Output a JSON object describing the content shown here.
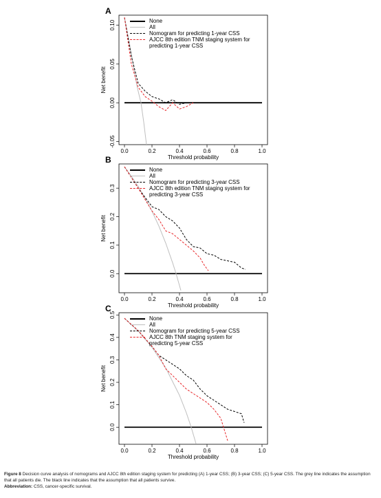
{
  "chart_data": [
    {
      "type": "line",
      "panel_label": "A",
      "xlabel": "Threshold probability",
      "ylabel": "Net benefit",
      "xlim": [
        -0.04,
        1.04
      ],
      "ylim": [
        -0.054,
        0.113
      ],
      "xticks": [
        {
          "value": 0,
          "label": "0.0"
        },
        0.2,
        0.4,
        0.6,
        0.8,
        {
          "value": 1,
          "label": "1.0"
        }
      ],
      "yticks": [
        -0.05,
        {
          "value": 0,
          "label": "0.00"
        },
        0.05,
        {
          "value": 0.1,
          "label": "0.10"
        }
      ],
      "legend": "topright",
      "series": [
        {
          "name": "None",
          "color": "#000000",
          "dash": "solid",
          "x": [
            0,
            1
          ],
          "values": [
            0,
            0
          ]
        },
        {
          "name": "All",
          "color": "#bebebe",
          "dash": "solid",
          "x": [
            0,
            0.03,
            0.06,
            0.09,
            0.12,
            0.14,
            0.16
          ],
          "values": [
            0.11,
            0.082,
            0.053,
            0.022,
            0.0,
            -0.025,
            -0.054
          ]
        },
        {
          "name": "Nomogram for predicting 1-year CSS",
          "color": "#000000",
          "dash": "dashed",
          "x": [
            0,
            0.05,
            0.1,
            0.15,
            0.2,
            0.25,
            0.3,
            0.35,
            0.4,
            0.45,
            0.5,
            0.52
          ],
          "values": [
            0.11,
            0.06,
            0.025,
            0.015,
            0.008,
            0.005,
            0.0,
            0.004,
            -0.002,
            0.0,
            0.0,
            0.0
          ]
        },
        {
          "name": "AJCC 8th edition TNM staging system for predicting 1-year CSS",
          "color": "#e8272a",
          "dash": "dashed",
          "x": [
            0,
            0.05,
            0.1,
            0.15,
            0.2,
            0.25,
            0.3,
            0.35,
            0.4,
            0.45,
            0.5
          ],
          "values": [
            0.11,
            0.05,
            0.02,
            0.008,
            0.002,
            -0.005,
            -0.01,
            0.0,
            -0.008,
            -0.005,
            0.0
          ]
        }
      ]
    },
    {
      "type": "line",
      "panel_label": "B",
      "xlabel": "Threshold probability",
      "ylabel": "Net benefit",
      "xlim": [
        -0.04,
        1.04
      ],
      "ylim": [
        -0.067,
        0.385
      ],
      "xticks": [
        {
          "value": 0,
          "label": "0.0"
        },
        0.2,
        0.4,
        0.6,
        0.8,
        {
          "value": 1,
          "label": "1.0"
        }
      ],
      "yticks": [
        {
          "value": 0,
          "label": "0.0"
        },
        0.1,
        0.2,
        0.3
      ],
      "legend": "topright",
      "series": [
        {
          "name": "None",
          "color": "#000000",
          "dash": "solid",
          "x": [
            0,
            1
          ],
          "values": [
            0,
            0
          ]
        },
        {
          "name": "All",
          "color": "#bebebe",
          "dash": "solid",
          "x": [
            0,
            0.05,
            0.1,
            0.15,
            0.2,
            0.25,
            0.3,
            0.35,
            0.375,
            0.4,
            0.41
          ],
          "values": [
            0.375,
            0.342,
            0.306,
            0.265,
            0.219,
            0.167,
            0.107,
            0.038,
            0.0,
            -0.042,
            -0.059
          ]
        },
        {
          "name": "Nomogram for predicting 3-year CSS",
          "color": "#000000",
          "dash": "dashed",
          "x": [
            0,
            0.1,
            0.2,
            0.25,
            0.3,
            0.35,
            0.4,
            0.45,
            0.5,
            0.55,
            0.6,
            0.65,
            0.7,
            0.75,
            0.8,
            0.85,
            0.88
          ],
          "values": [
            0.375,
            0.3,
            0.235,
            0.225,
            0.2,
            0.185,
            0.16,
            0.12,
            0.095,
            0.09,
            0.07,
            0.065,
            0.05,
            0.045,
            0.04,
            0.02,
            0.015
          ]
        },
        {
          "name": "AJCC 8th edition TNM staging system for predicting 3-year CSS",
          "color": "#e8272a",
          "dash": "dashed",
          "x": [
            0,
            0.1,
            0.2,
            0.25,
            0.3,
            0.35,
            0.4,
            0.45,
            0.5,
            0.55,
            0.58,
            0.61
          ],
          "values": [
            0.375,
            0.3,
            0.22,
            0.19,
            0.15,
            0.14,
            0.12,
            0.1,
            0.08,
            0.055,
            0.03,
            0.01
          ]
        }
      ]
    },
    {
      "type": "line",
      "panel_label": "C",
      "xlabel": "Threshold probability",
      "ylabel": "Net benefit",
      "xlim": [
        -0.04,
        1.04
      ],
      "ylim": [
        -0.076,
        0.51
      ],
      "xticks": [
        {
          "value": 0,
          "label": "0.0"
        },
        0.2,
        0.4,
        0.6,
        0.8,
        {
          "value": 1,
          "label": "1.0"
        }
      ],
      "yticks": [
        {
          "value": 0,
          "label": "0.0"
        },
        0.1,
        0.2,
        0.3,
        0.4,
        0.5
      ],
      "legend": "topright",
      "series": [
        {
          "name": "None",
          "color": "#000000",
          "dash": "solid",
          "x": [
            0,
            1
          ],
          "values": [
            0,
            0
          ]
        },
        {
          "name": "All",
          "color": "#bebebe",
          "dash": "solid",
          "x": [
            0,
            0.1,
            0.2,
            0.3,
            0.4,
            0.45,
            0.485,
            0.52
          ],
          "values": [
            0.485,
            0.428,
            0.356,
            0.264,
            0.142,
            0.064,
            0.0,
            -0.073
          ]
        },
        {
          "name": "Nomogram for predicting 5-year CSS",
          "color": "#000000",
          "dash": "dashed",
          "x": [
            0,
            0.1,
            0.2,
            0.25,
            0.3,
            0.35,
            0.4,
            0.45,
            0.5,
            0.55,
            0.6,
            0.65,
            0.7,
            0.75,
            0.8,
            0.85,
            0.87
          ],
          "values": [
            0.485,
            0.43,
            0.36,
            0.32,
            0.3,
            0.28,
            0.26,
            0.23,
            0.21,
            0.17,
            0.14,
            0.12,
            0.1,
            0.08,
            0.07,
            0.06,
            0.02
          ]
        },
        {
          "name": "AJCC 8th TNM staging system for predicting 5-year CSS",
          "color": "#e8272a",
          "dash": "dashed",
          "x": [
            0,
            0.1,
            0.2,
            0.25,
            0.3,
            0.35,
            0.4,
            0.45,
            0.5,
            0.55,
            0.6,
            0.65,
            0.7,
            0.73,
            0.75
          ],
          "values": [
            0.485,
            0.43,
            0.36,
            0.32,
            0.26,
            0.23,
            0.2,
            0.17,
            0.15,
            0.13,
            0.11,
            0.08,
            0.04,
            -0.02,
            -0.06
          ]
        }
      ]
    }
  ],
  "caption": {
    "label": "Figure 8",
    "text": "Decision curve analysis of nomograms and AJCC 8th edition staging system for predicting (A) 1-year CSS; (B) 3-year CSS; (C) 5-year CSS. The grey line indicates the assumption that all patients die. The black line indicates that the assumption that all patients survive."
  },
  "abbreviation": {
    "label": "Abbreviation:",
    "text": "CSS, cancer-specific survival."
  }
}
